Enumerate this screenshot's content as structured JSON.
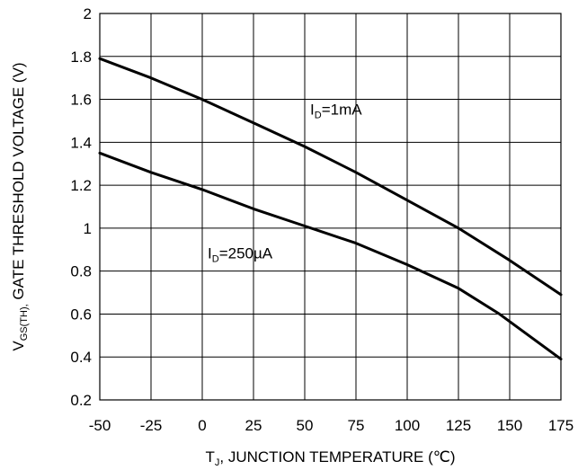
{
  "chart_data": {
    "type": "line",
    "title": "",
    "xlabel": {
      "main": "T",
      "sub": "J",
      "rest": ", JUNCTION TEMPERATURE (℃)"
    },
    "ylabel": {
      "main": "V",
      "sub": "GS(TH),",
      "rest": "  GATE THRESHOLD VOLTAGE (V)"
    },
    "xlim": [
      -50,
      175
    ],
    "ylim": [
      0.2,
      2
    ],
    "xticks": [
      -50,
      -25,
      0,
      25,
      50,
      75,
      100,
      125,
      150,
      175
    ],
    "yticks": [
      0.2,
      0.4,
      0.6,
      0.8,
      1,
      1.2,
      1.4,
      1.6,
      1.8,
      2
    ],
    "ytick_labels": [
      "0.2",
      "0.4",
      "0.6",
      "0.8",
      "1",
      "1.2",
      "1.4",
      "1.6",
      "1.8",
      "2"
    ],
    "grid": true,
    "series": [
      {
        "id": "id-1ma",
        "label": {
          "main": "I",
          "sub": "D",
          "rest": "=1mA"
        },
        "label_at": [
          50,
          1.53
        ],
        "points": [
          [
            -50,
            1.79
          ],
          [
            -25,
            1.7
          ],
          [
            0,
            1.6
          ],
          [
            25,
            1.49
          ],
          [
            50,
            1.38
          ],
          [
            75,
            1.26
          ],
          [
            100,
            1.13
          ],
          [
            125,
            1.0
          ],
          [
            150,
            0.85
          ],
          [
            175,
            0.69
          ]
        ]
      },
      {
        "id": "id-250ua",
        "label": {
          "main": "I",
          "sub": "D",
          "rest": "=250µA"
        },
        "label_at": [
          0,
          0.86
        ],
        "points": [
          [
            -50,
            1.35
          ],
          [
            -25,
            1.26
          ],
          [
            0,
            1.18
          ],
          [
            25,
            1.09
          ],
          [
            50,
            1.01
          ],
          [
            75,
            0.93
          ],
          [
            100,
            0.83
          ],
          [
            125,
            0.72
          ],
          [
            145,
            0.6
          ],
          [
            175,
            0.39
          ]
        ]
      }
    ]
  }
}
